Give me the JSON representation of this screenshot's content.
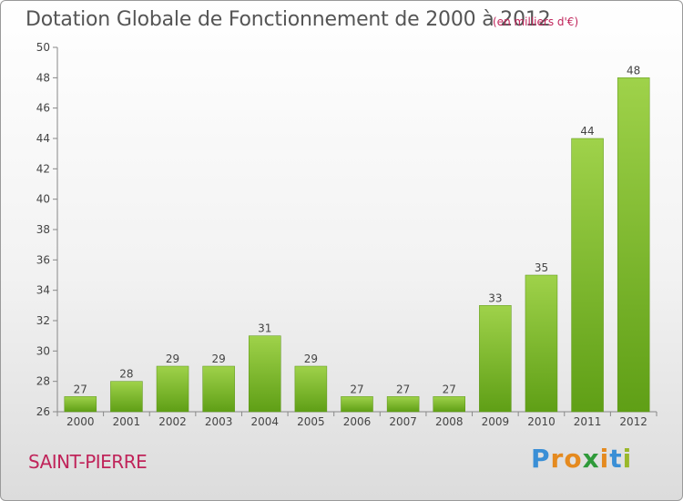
{
  "chart_data": {
    "type": "bar",
    "title": "Dotation Globale de Fonctionnement de 2000 à 2012",
    "subtitle": "(en milliers d'€)",
    "xlabel": "",
    "ylabel": "",
    "categories": [
      "2000",
      "2001",
      "2002",
      "2003",
      "2004",
      "2005",
      "2006",
      "2007",
      "2008",
      "2009",
      "2010",
      "2011",
      "2012"
    ],
    "values": [
      27,
      28,
      29,
      29,
      31,
      29,
      27,
      27,
      27,
      33,
      35,
      44,
      48
    ],
    "ylim": [
      26,
      50
    ],
    "yticks": [
      26,
      28,
      30,
      32,
      34,
      36,
      38,
      40,
      42,
      44,
      46,
      48,
      50
    ],
    "grid": false,
    "legend": "none",
    "bar_color": "#7cbf2a"
  },
  "footer": {
    "location": "SAINT-PIERRE",
    "brand": {
      "letters": [
        "P",
        "r",
        "o",
        "x",
        "i",
        "t",
        "i"
      ],
      "colors": [
        "#3a8fd6",
        "#e58a1f",
        "#e58a1f",
        "#2f9a3a",
        "#e58a1f",
        "#3a8fd6",
        "#9ab82a"
      ]
    }
  }
}
